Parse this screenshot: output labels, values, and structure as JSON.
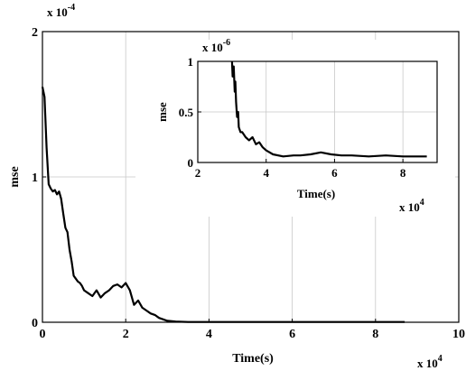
{
  "chart_data": [
    {
      "type": "line",
      "role": "main",
      "xlabel": "Time(s)",
      "ylabel": "mse",
      "x_multiplier": "x 10",
      "x_multiplier_exp": "4",
      "y_multiplier": "x 10",
      "y_multiplier_exp": "-4",
      "xlim": [
        0,
        10
      ],
      "ylim": [
        0,
        2
      ],
      "xticks": [
        0,
        2,
        4,
        6,
        8,
        10
      ],
      "yticks": [
        0,
        1,
        2
      ],
      "grid": true,
      "series": [
        {
          "x": [
            0,
            0.05,
            0.1,
            0.15,
            0.2,
            0.25,
            0.3,
            0.35,
            0.4,
            0.45,
            0.5,
            0.55,
            0.6,
            0.65,
            0.7,
            0.75,
            0.8,
            0.85,
            0.9,
            0.95,
            1.0,
            1.1,
            1.2,
            1.3,
            1.4,
            1.5,
            1.6,
            1.7,
            1.8,
            1.9,
            2.0,
            2.1,
            2.2,
            2.3,
            2.4,
            2.5,
            2.6,
            2.7,
            2.8,
            2.9,
            3.0,
            3.2,
            3.5,
            4.0,
            5.0,
            6.0,
            7.0,
            8.0,
            8.7
          ],
          "y": [
            1.62,
            1.55,
            1.2,
            0.95,
            0.92,
            0.9,
            0.91,
            0.88,
            0.9,
            0.85,
            0.75,
            0.65,
            0.62,
            0.5,
            0.42,
            0.32,
            0.3,
            0.28,
            0.27,
            0.25,
            0.22,
            0.2,
            0.18,
            0.22,
            0.17,
            0.2,
            0.22,
            0.25,
            0.26,
            0.24,
            0.27,
            0.22,
            0.12,
            0.15,
            0.1,
            0.08,
            0.06,
            0.05,
            0.03,
            0.02,
            0.01,
            0.005,
            0.002,
            0.002,
            0.002,
            0.002,
            0.002,
            0.002,
            0.002
          ]
        }
      ]
    },
    {
      "type": "line",
      "role": "inset",
      "xlabel": "Time(s)",
      "ylabel": "mse",
      "x_multiplier": "x 10",
      "x_multiplier_exp": "4",
      "y_multiplier": "x 10",
      "y_multiplier_exp": "-6",
      "xlim": [
        2,
        9
      ],
      "ylim": [
        0,
        1
      ],
      "xticks": [
        2,
        4,
        6,
        8
      ],
      "yticks": [
        0,
        0.5,
        1
      ],
      "ytick_labels": [
        "0",
        "0.5",
        "1"
      ],
      "grid": true,
      "series": [
        {
          "x": [
            3.0,
            3.02,
            3.05,
            3.08,
            3.1,
            3.12,
            3.15,
            3.18,
            3.2,
            3.25,
            3.3,
            3.4,
            3.5,
            3.6,
            3.7,
            3.8,
            3.9,
            4.0,
            4.2,
            4.5,
            4.8,
            5.0,
            5.3,
            5.6,
            5.9,
            6.2,
            6.5,
            7.0,
            7.5,
            8.0,
            8.5,
            8.7
          ],
          "y": [
            1.0,
            0.85,
            0.95,
            0.7,
            0.8,
            0.6,
            0.45,
            0.5,
            0.35,
            0.3,
            0.3,
            0.25,
            0.22,
            0.25,
            0.18,
            0.2,
            0.15,
            0.12,
            0.08,
            0.06,
            0.07,
            0.07,
            0.08,
            0.1,
            0.08,
            0.07,
            0.07,
            0.06,
            0.07,
            0.06,
            0.06,
            0.06
          ]
        }
      ]
    }
  ]
}
